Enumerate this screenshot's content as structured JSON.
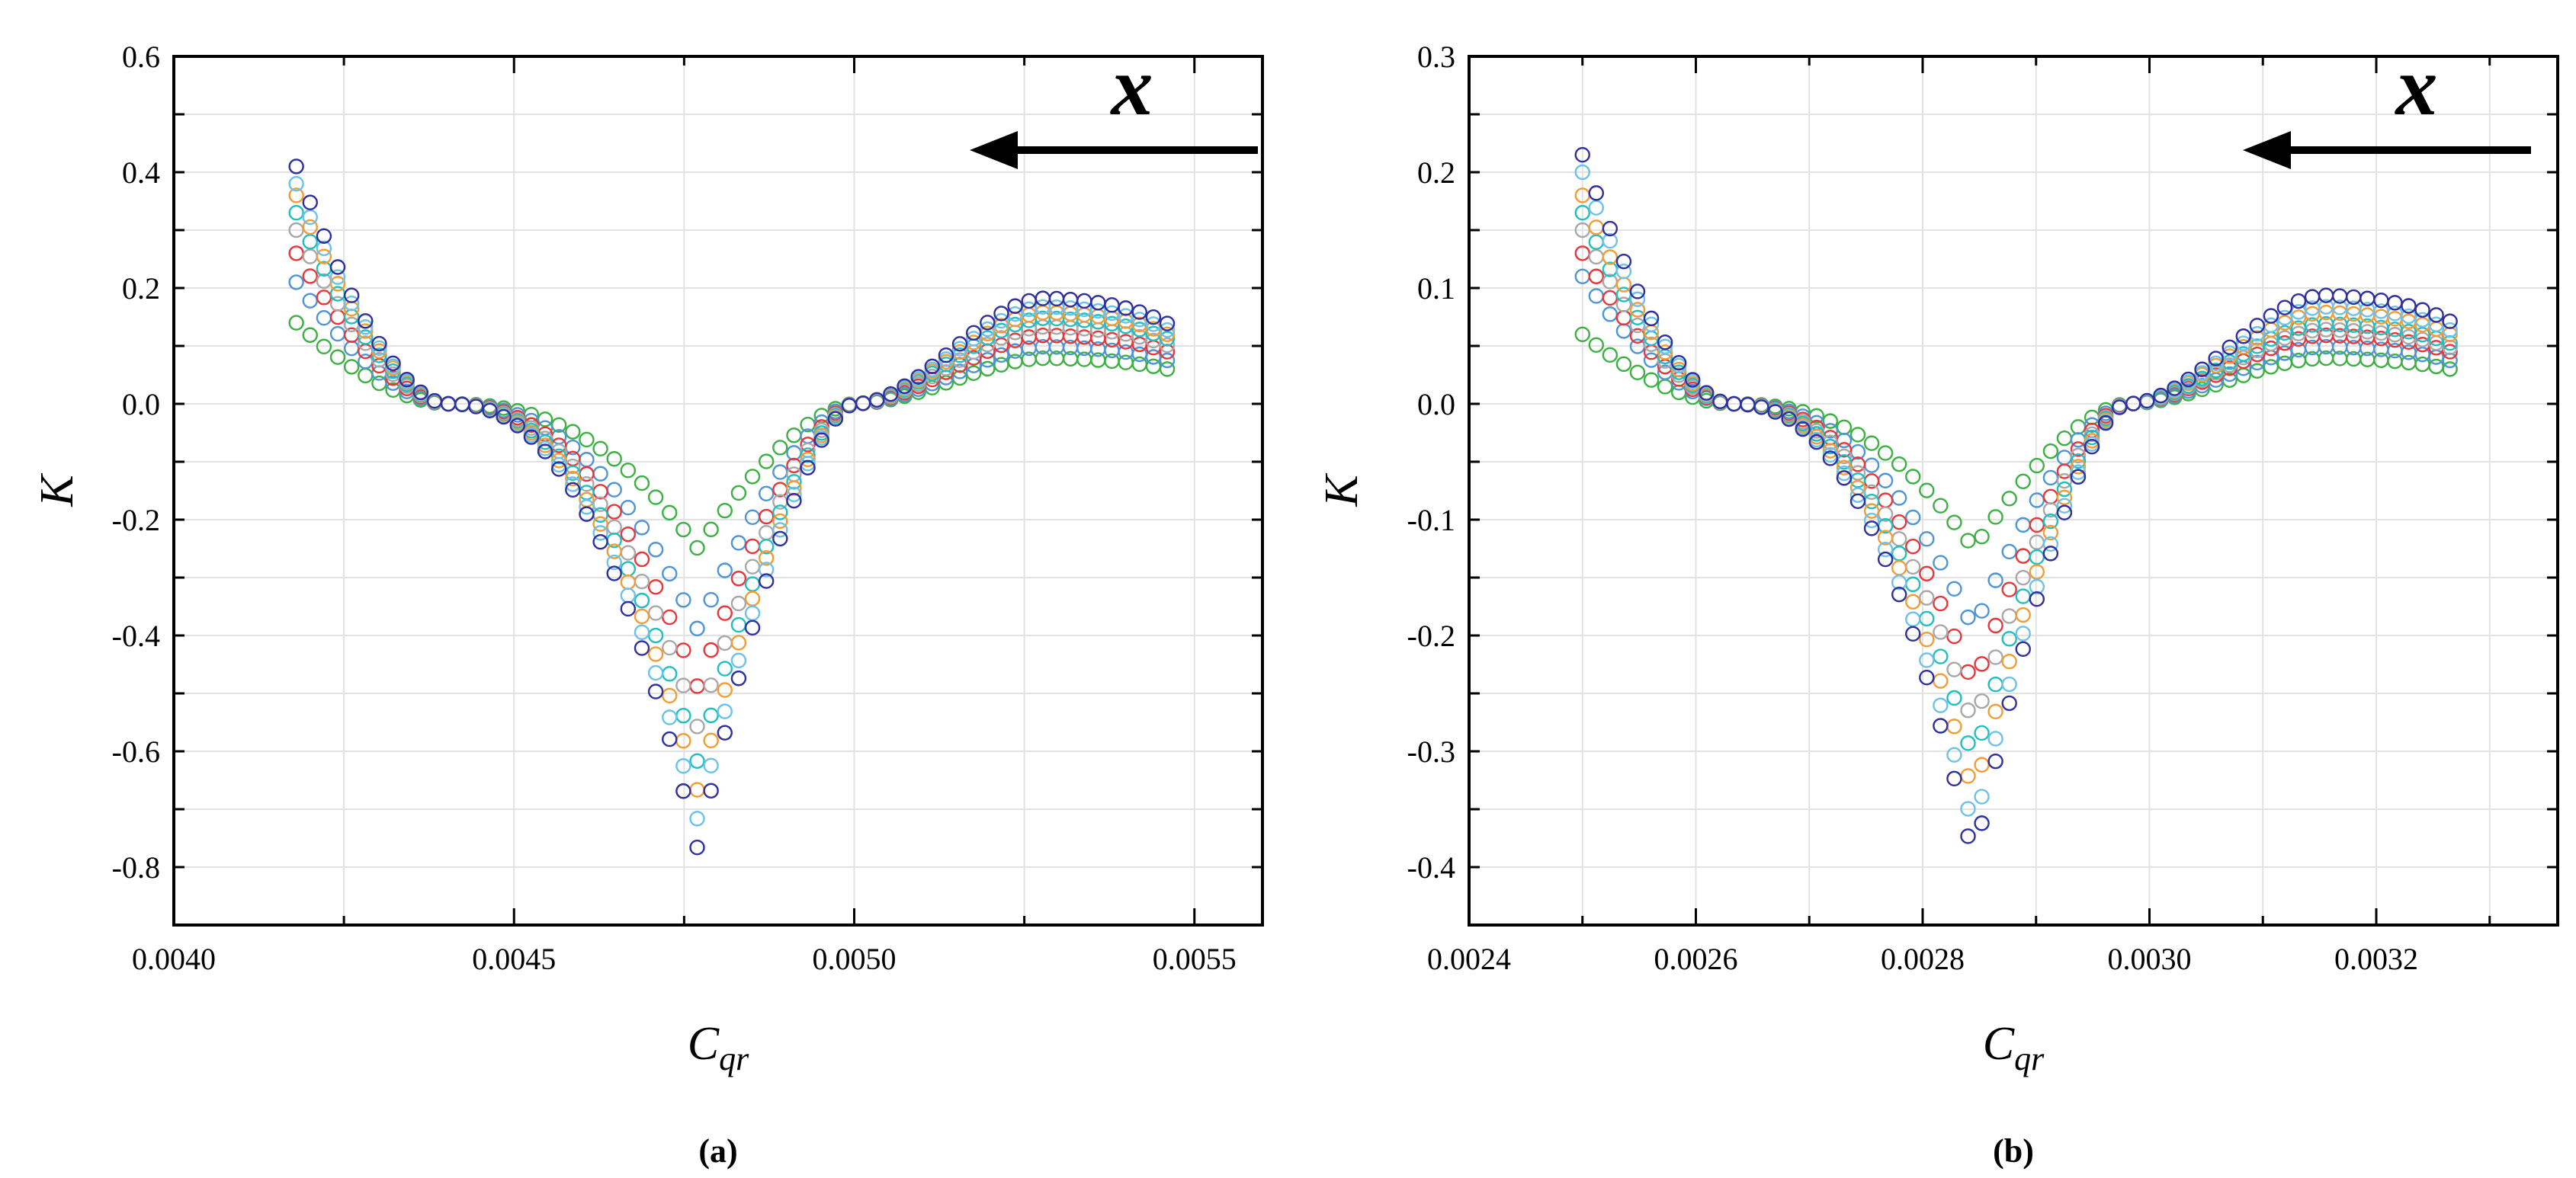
{
  "chart_data": [
    {
      "type": "scatter",
      "caption": "(a)",
      "xlabel": {
        "main": "C",
        "sub": "qr"
      },
      "ylabel": "K",
      "xlim": [
        0.004,
        0.0056
      ],
      "ylim": [
        -0.9,
        0.6
      ],
      "xticks": [
        "0.0040",
        "0.0045",
        "0.0050",
        "0.0055"
      ],
      "yticks": [
        "-0.8",
        "-0.6",
        "-0.4",
        "-0.2",
        "0.0",
        "0.2",
        "0.4",
        "0.6"
      ],
      "grid": true,
      "annotation": {
        "text": "x",
        "arrow": "pointing left",
        "placement": "top-right"
      },
      "x_range": [
        0.00418,
        0.00546
      ],
      "x_cross_left": 0.0044,
      "x_cross_right": 0.005,
      "x_valley": 0.00477,
      "series": [
        {
          "name": "s1",
          "color": "#3CB043",
          "start": 0.14,
          "valley": -0.25,
          "plateau": 0.08
        },
        {
          "name": "s2",
          "color": "#4F95D6",
          "start": 0.21,
          "valley": -0.39,
          "plateau": 0.1
        },
        {
          "name": "s3",
          "color": "#E8363B",
          "start": 0.26,
          "valley": -0.49,
          "plateau": 0.12
        },
        {
          "name": "s4",
          "color": "#A8A8A8",
          "start": 0.3,
          "valley": -0.56,
          "plateau": 0.135
        },
        {
          "name": "s5",
          "color": "#20BFC0",
          "start": 0.33,
          "valley": -0.62,
          "plateau": 0.15
        },
        {
          "name": "s6",
          "color": "#F39C34",
          "start": 0.36,
          "valley": -0.67,
          "plateau": 0.16
        },
        {
          "name": "s7",
          "color": "#6EC1E8",
          "start": 0.38,
          "valley": -0.72,
          "plateau": 0.17
        },
        {
          "name": "s8",
          "color": "#2E2FA0",
          "start": 0.41,
          "valley": -0.77,
          "plateau": 0.185
        }
      ]
    },
    {
      "type": "scatter",
      "caption": "(b)",
      "xlabel": {
        "main": "C",
        "sub": "qr"
      },
      "ylabel": "K",
      "xlim": [
        0.0024,
        0.00336
      ],
      "ylim": [
        -0.45,
        0.3
      ],
      "xticks": [
        "0.0024",
        "0.0026",
        "0.0028",
        "0.0030",
        "0.0032"
      ],
      "yticks": [
        "-0.4",
        "-0.3",
        "-0.2",
        "-0.1",
        "0.0",
        "0.1",
        "0.2",
        "0.3"
      ],
      "grid": true,
      "annotation": {
        "text": "x",
        "arrow": "pointing left",
        "placement": "top-right"
      },
      "x_range": [
        0.0025,
        0.003265
      ],
      "x_cross_left": 0.00263,
      "x_cross_right": 0.00298,
      "x_valley": 0.002845,
      "series": [
        {
          "name": "s1",
          "color": "#3CB043",
          "start": 0.06,
          "valley": -0.125,
          "plateau": 0.04
        },
        {
          "name": "s2",
          "color": "#4F95D6",
          "start": 0.11,
          "valley": -0.195,
          "plateau": 0.05
        },
        {
          "name": "s3",
          "color": "#E8363B",
          "start": 0.13,
          "valley": -0.245,
          "plateau": 0.06
        },
        {
          "name": "s4",
          "color": "#A8A8A8",
          "start": 0.15,
          "valley": -0.28,
          "plateau": 0.065
        },
        {
          "name": "s5",
          "color": "#20BFC0",
          "start": 0.165,
          "valley": -0.31,
          "plateau": 0.07
        },
        {
          "name": "s6",
          "color": "#F39C34",
          "start": 0.18,
          "valley": -0.34,
          "plateau": 0.08
        },
        {
          "name": "s7",
          "color": "#6EC1E8",
          "start": 0.2,
          "valley": -0.37,
          "plateau": 0.085
        },
        {
          "name": "s8",
          "color": "#2E2FA0",
          "start": 0.215,
          "valley": -0.395,
          "plateau": 0.095
        }
      ]
    }
  ]
}
